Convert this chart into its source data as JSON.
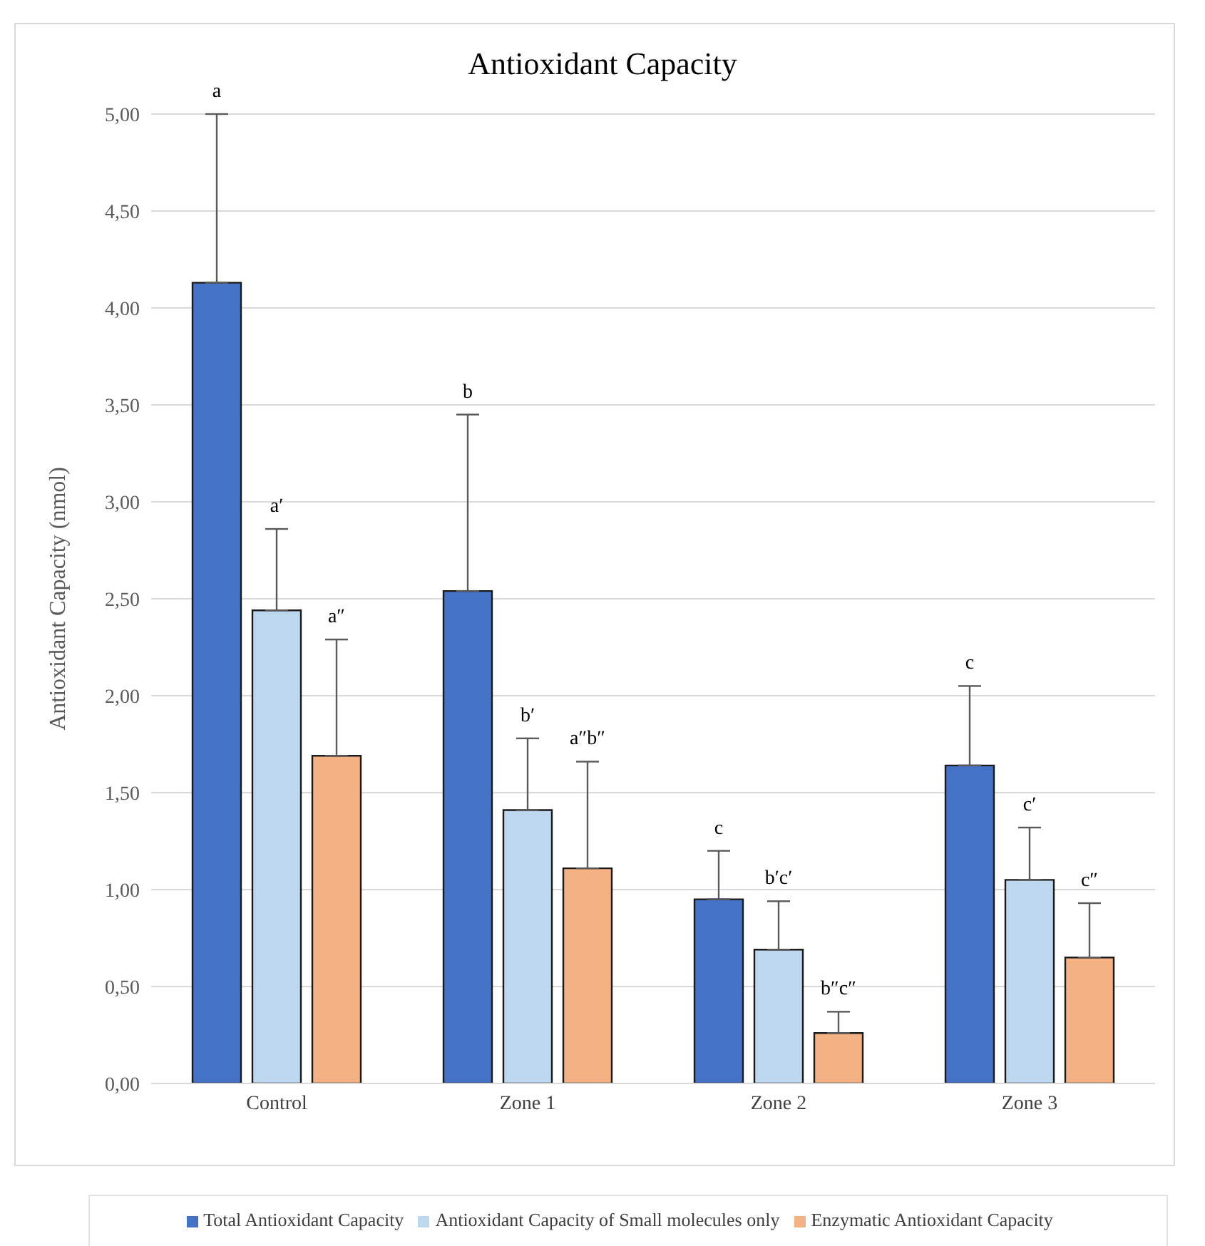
{
  "chart_data": {
    "type": "bar",
    "title": "Antioxidant Capacity",
    "ylabel": "Antioxidant Capacity (nmol)",
    "categories": [
      "Control",
      "Zone 1",
      "Zone 2",
      "Zone 3"
    ],
    "series": [
      {
        "name": "Total Antioxidant Capacity",
        "color": "#4472c4",
        "values": [
          4.13,
          2.54,
          0.95,
          1.64
        ],
        "errors": [
          [
            4.13,
            5.0
          ],
          [
            2.54,
            3.45
          ],
          [
            0.95,
            1.2
          ],
          [
            1.64,
            2.05
          ]
        ]
      },
      {
        "name": "Antioxidant Capacity of Small molecules only",
        "color": "#bdd7ee",
        "values": [
          2.44,
          1.41,
          0.69,
          1.05
        ],
        "errors": [
          [
            2.44,
            2.86
          ],
          [
            1.41,
            1.78
          ],
          [
            0.69,
            0.94
          ],
          [
            1.05,
            1.32
          ]
        ]
      },
      {
        "name": "Enzymatic Antioxidant Capacity",
        "color": "#f4b183",
        "values": [
          1.69,
          1.11,
          0.26,
          0.65
        ],
        "errors": [
          [
            1.69,
            2.29
          ],
          [
            1.11,
            1.66
          ],
          [
            0.26,
            0.37
          ],
          [
            0.65,
            0.93
          ]
        ]
      }
    ],
    "ylim": [
      0,
      5
    ],
    "yticks": [
      {
        "value": 0,
        "label": "0,00"
      },
      {
        "value": 0.5,
        "label": "0,50"
      },
      {
        "value": 1,
        "label": "1,00"
      },
      {
        "value": 1.5,
        "label": "1,50"
      },
      {
        "value": 2,
        "label": "2,00"
      },
      {
        "value": 2.5,
        "label": "2,50"
      },
      {
        "value": 3,
        "label": "3,00"
      },
      {
        "value": 3.5,
        "label": "3,50"
      },
      {
        "value": 4,
        "label": "4,00"
      },
      {
        "value": 4.5,
        "label": "4,50"
      },
      {
        "value": 5,
        "label": "5,00"
      }
    ],
    "grid": "y",
    "legend": "bottom",
    "annotations": [
      "a",
      "a′",
      "a″",
      "b",
      "b′",
      "a″b″",
      "c",
      "b′c′",
      "b″c″",
      "c",
      "c′",
      "c″"
    ]
  }
}
